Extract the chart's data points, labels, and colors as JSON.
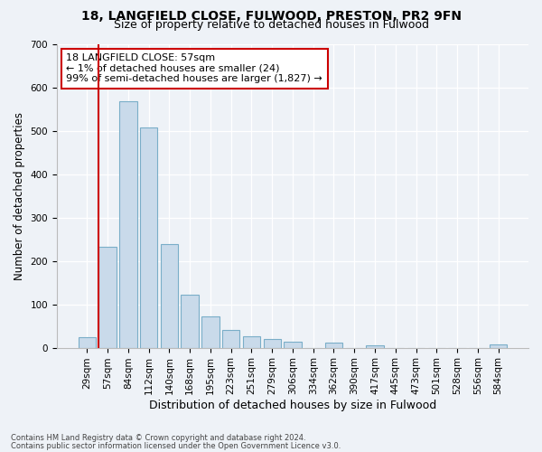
{
  "title1": "18, LANGFIELD CLOSE, FULWOOD, PRESTON, PR2 9FN",
  "title2": "Size of property relative to detached houses in Fulwood",
  "xlabel": "Distribution of detached houses by size in Fulwood",
  "ylabel": "Number of detached properties",
  "categories": [
    "29sqm",
    "57sqm",
    "84sqm",
    "112sqm",
    "140sqm",
    "168sqm",
    "195sqm",
    "223sqm",
    "251sqm",
    "279sqm",
    "306sqm",
    "334sqm",
    "362sqm",
    "390sqm",
    "417sqm",
    "445sqm",
    "473sqm",
    "501sqm",
    "528sqm",
    "556sqm",
    "584sqm"
  ],
  "values": [
    25,
    232,
    568,
    508,
    240,
    123,
    72,
    40,
    27,
    20,
    13,
    0,
    12,
    0,
    6,
    0,
    0,
    0,
    0,
    0,
    8
  ],
  "bar_color": "#c9daea",
  "bar_edge_color": "#7aaec8",
  "vline_color": "#cc0000",
  "annotation_text": "18 LANGFIELD CLOSE: 57sqm\n← 1% of detached houses are smaller (24)\n99% of semi-detached houses are larger (1,827) →",
  "annotation_box_color": "#ffffff",
  "annotation_box_edge": "#cc0000",
  "footnote1": "Contains HM Land Registry data © Crown copyright and database right 2024.",
  "footnote2": "Contains public sector information licensed under the Open Government Licence v3.0.",
  "bg_color": "#eef2f7",
  "ylim": [
    0,
    700
  ],
  "yticks": [
    0,
    100,
    200,
    300,
    400,
    500,
    600,
    700
  ],
  "title1_fontsize": 10,
  "title2_fontsize": 9,
  "tick_fontsize": 7.5,
  "ylabel_fontsize": 8.5,
  "xlabel_fontsize": 9,
  "annotation_fontsize": 8,
  "footnote_fontsize": 6
}
